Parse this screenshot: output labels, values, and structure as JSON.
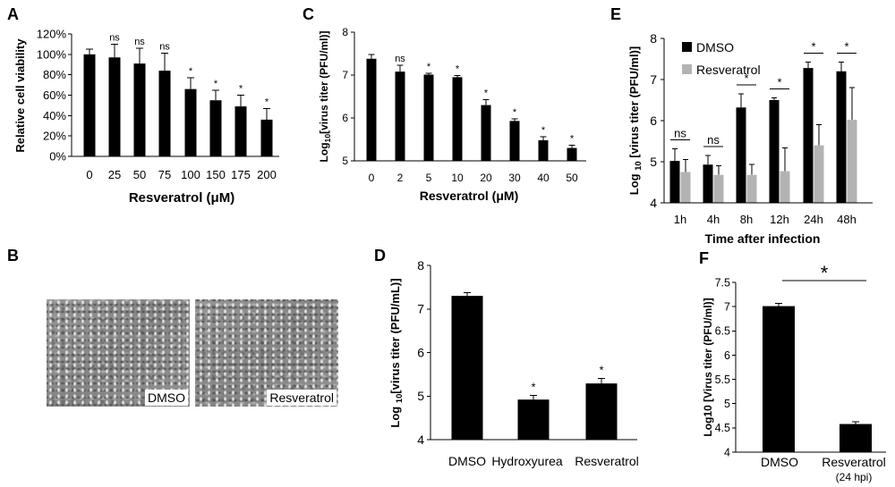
{
  "panel_b": {
    "panel": "B",
    "images": [
      {
        "caption": "DMSO"
      },
      {
        "caption": "Resveratrol"
      }
    ]
  },
  "chart_data": [
    {
      "panel": "A",
      "type": "bar",
      "categories": [
        "0",
        "25",
        "50",
        "75",
        "100",
        "150",
        "175",
        "200"
      ],
      "values": [
        100,
        97,
        91,
        84,
        66,
        55,
        49,
        36
      ],
      "errors": [
        5,
        13,
        15,
        17,
        11,
        10,
        11,
        11
      ],
      "annotations": [
        "",
        "ns",
        "ns",
        "ns",
        "*",
        "*",
        "*",
        "*"
      ],
      "ylabel": "Relative cell viability",
      "xlabel": "Resveratrol (μM)",
      "ylim": [
        0,
        120
      ],
      "yticks": [
        0,
        20,
        40,
        60,
        80,
        100,
        120
      ],
      "ytick_labels": [
        "0%",
        "20%",
        "40%",
        "60%",
        "80%",
        "100%",
        "120%"
      ],
      "color": "#000000",
      "grid": false
    },
    {
      "panel": "C",
      "type": "bar",
      "categories": [
        "0",
        "2",
        "5",
        "10",
        "20",
        "30",
        "40",
        "50"
      ],
      "values": [
        7.38,
        7.08,
        7.01,
        6.95,
        6.3,
        5.93,
        5.48,
        5.3
      ],
      "errors": [
        0.1,
        0.15,
        0.03,
        0.04,
        0.13,
        0.05,
        0.08,
        0.06
      ],
      "annotations": [
        "",
        "ns",
        "*",
        "*",
        "*",
        "*",
        "*",
        "*"
      ],
      "ylabel": {
        "main": "Log",
        "sub": "10",
        "rest": "[virus titer (PFU/ml)]"
      },
      "xlabel": "Resveratrol (μM)",
      "ylim": [
        5,
        8
      ],
      "yticks": [
        5,
        6,
        7,
        8
      ],
      "ytick_labels": [
        "5",
        "6",
        "7",
        "8"
      ],
      "color": "#000000",
      "grid": false
    },
    {
      "panel": "E",
      "type": "bar",
      "categories": [
        "1h",
        "4h",
        "8h",
        "12h",
        "24h",
        "48h"
      ],
      "series": [
        {
          "name": "DMSO",
          "values": [
            5.02,
            4.93,
            6.32,
            6.5,
            7.28,
            7.2
          ],
          "errors": [
            0.3,
            0.22,
            0.33,
            0.05,
            0.14,
            0.22
          ],
          "color": "#000000"
        },
        {
          "name": "Resveratrol",
          "values": [
            4.75,
            4.68,
            4.68,
            4.77,
            5.4,
            6.02
          ],
          "errors": [
            0.3,
            0.22,
            0.25,
            0.57,
            0.5,
            0.78
          ],
          "color": "#b3b3b3"
        }
      ],
      "annotations": [
        "ns",
        "ns",
        "*",
        "*",
        "*",
        "*"
      ],
      "ylabel": {
        "main": "Log ",
        "sub": "10",
        "rest": " [virus titer (PFU/ml)]"
      },
      "xlabel": "Time after infection",
      "ylim": [
        4,
        8
      ],
      "yticks": [
        4,
        5,
        6,
        7,
        8
      ],
      "ytick_labels": [
        "4",
        "5",
        "6",
        "7",
        "8"
      ],
      "legend": "top-left",
      "grid": false
    },
    {
      "panel": "D",
      "type": "bar",
      "categories": [
        "DMSO",
        "Hydroxyurea",
        "Resveratrol"
      ],
      "values": [
        7.3,
        4.92,
        5.29
      ],
      "errors": [
        0.07,
        0.1,
        0.12
      ],
      "annotations": [
        "",
        "*",
        "*"
      ],
      "ylabel": {
        "main": "Log ",
        "sub": "10",
        "rest": "[virus titer (PFU/mL)]"
      },
      "ylim": [
        4,
        8
      ],
      "yticks": [
        4,
        5,
        6,
        7,
        8
      ],
      "ytick_labels": [
        "4",
        "5",
        "6",
        "7",
        "8"
      ],
      "color": "#000000",
      "grid": false
    },
    {
      "panel": "F",
      "type": "bar",
      "categories": [
        "DMSO",
        "Resveratrol"
      ],
      "category_notes": [
        "",
        "(24 hpi)"
      ],
      "values": [
        7.01,
        4.58
      ],
      "errors": [
        0.06,
        0.05
      ],
      "significance": [
        {
          "between": [
            0,
            1
          ],
          "label": "*"
        }
      ],
      "ylabel": "Log10 [Virus titer (PFU/ml)]",
      "ylim": [
        4,
        7.5
      ],
      "yticks": [
        4,
        4.5,
        5,
        5.5,
        6,
        6.5,
        7,
        7.5
      ],
      "ytick_labels": [
        "4",
        "4.5",
        "5",
        "5.5",
        "6",
        "6.5",
        "7",
        "7.5"
      ],
      "color": "#000000",
      "grid": false
    }
  ]
}
